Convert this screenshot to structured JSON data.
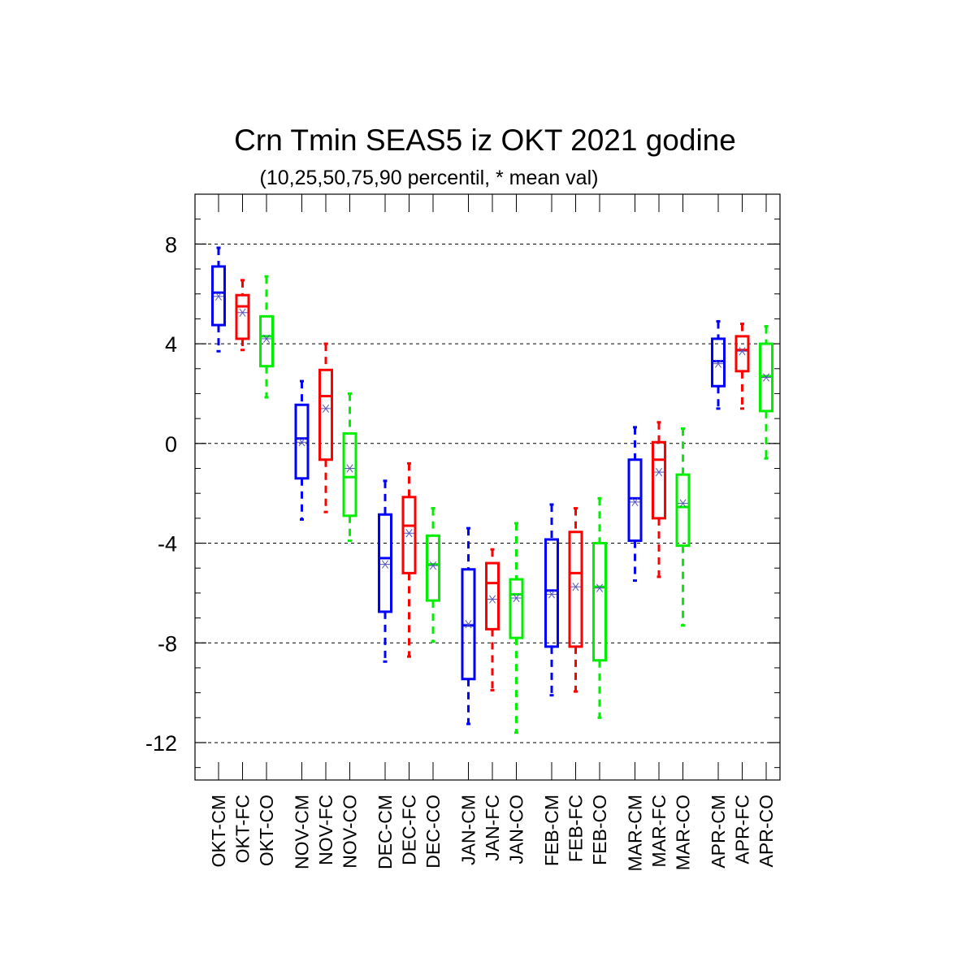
{
  "chart_data": {
    "type": "box",
    "title": "Crn Tmin SEAS5 iz OKT 2021 godine",
    "subtitle": "(10,25,50,75,90 percentil, * mean val)",
    "ylim": [
      -13.5,
      10
    ],
    "yticks": [
      8,
      4,
      0,
      -4,
      -8,
      -12
    ],
    "ytick_labels": [
      "8",
      "4",
      "0",
      "-4",
      "-8",
      "-12"
    ],
    "grid": "horizontal dashed at major ticks",
    "series_colors": {
      "CM": "#0000ff",
      "FC": "#ff0000",
      "CO": "#00ee00"
    },
    "mean_marker_color": "#5555bb",
    "groups": [
      "OKT",
      "NOV",
      "DEC",
      "JAN",
      "FEB",
      "MAR",
      "APR"
    ],
    "boxes": [
      {
        "label": "OKT-CM",
        "series": "CM",
        "p10": 3.7,
        "p25": 4.75,
        "p50": 6.05,
        "p75": 7.1,
        "p90": 7.85,
        "mean": 5.9
      },
      {
        "label": "OKT-FC",
        "series": "FC",
        "p10": 3.75,
        "p25": 4.2,
        "p50": 5.5,
        "p75": 5.95,
        "p90": 6.55,
        "mean": 5.25
      },
      {
        "label": "OKT-CO",
        "series": "CO",
        "p10": 1.85,
        "p25": 3.1,
        "p50": 4.3,
        "p75": 5.1,
        "p90": 6.7,
        "mean": 4.2
      },
      {
        "label": "NOV-CM",
        "series": "CM",
        "p10": -3.05,
        "p25": -1.4,
        "p50": 0.2,
        "p75": 1.55,
        "p90": 2.5,
        "mean": 0.05
      },
      {
        "label": "NOV-FC",
        "series": "FC",
        "p10": -2.75,
        "p25": -0.65,
        "p50": 1.9,
        "p75": 2.95,
        "p90": 4.0,
        "mean": 1.4
      },
      {
        "label": "NOV-CO",
        "series": "CO",
        "p10": -3.9,
        "p25": -2.9,
        "p50": -1.35,
        "p75": 0.4,
        "p90": 2.0,
        "mean": -1.0
      },
      {
        "label": "DEC-CM",
        "series": "CM",
        "p10": -8.75,
        "p25": -6.75,
        "p50": -4.6,
        "p75": -2.85,
        "p90": -1.5,
        "mean": -4.85
      },
      {
        "label": "DEC-FC",
        "series": "FC",
        "p10": -8.55,
        "p25": -5.2,
        "p50": -3.3,
        "p75": -2.15,
        "p90": -0.8,
        "mean": -3.6
      },
      {
        "label": "DEC-CO",
        "series": "CO",
        "p10": -7.95,
        "p25": -6.3,
        "p50": -4.85,
        "p75": -3.7,
        "p90": -2.6,
        "mean": -4.9
      },
      {
        "label": "JAN-CM",
        "series": "CM",
        "p10": -11.25,
        "p25": -9.45,
        "p50": -7.3,
        "p75": -5.05,
        "p90": -3.4,
        "mean": -7.25
      },
      {
        "label": "JAN-FC",
        "series": "FC",
        "p10": -9.9,
        "p25": -7.45,
        "p50": -5.6,
        "p75": -4.8,
        "p90": -4.25,
        "mean": -6.25
      },
      {
        "label": "JAN-CO",
        "series": "CO",
        "p10": -11.6,
        "p25": -7.8,
        "p50": -6.05,
        "p75": -5.45,
        "p90": -3.2,
        "mean": -6.2
      },
      {
        "label": "FEB-CM",
        "series": "CM",
        "p10": -10.1,
        "p25": -8.15,
        "p50": -5.9,
        "p75": -3.85,
        "p90": -2.45,
        "mean": -6.05
      },
      {
        "label": "FEB-FC",
        "series": "FC",
        "p10": -9.95,
        "p25": -8.15,
        "p50": -5.2,
        "p75": -3.55,
        "p90": -2.6,
        "mean": -5.75
      },
      {
        "label": "FEB-CO",
        "series": "CO",
        "p10": -11.0,
        "p25": -8.7,
        "p50": -5.75,
        "p75": -4.0,
        "p90": -2.2,
        "mean": -5.8
      },
      {
        "label": "MAR-CM",
        "series": "CM",
        "p10": -5.5,
        "p25": -3.9,
        "p50": -2.2,
        "p75": -0.65,
        "p90": 0.65,
        "mean": -2.35
      },
      {
        "label": "MAR-FC",
        "series": "FC",
        "p10": -5.35,
        "p25": -3.0,
        "p50": -0.65,
        "p75": 0.05,
        "p90": 0.85,
        "mean": -1.15
      },
      {
        "label": "MAR-CO",
        "series": "CO",
        "p10": -7.3,
        "p25": -4.1,
        "p50": -2.55,
        "p75": -1.25,
        "p90": 0.6,
        "mean": -2.4
      },
      {
        "label": "APR-CM",
        "series": "CM",
        "p10": 1.4,
        "p25": 2.3,
        "p50": 3.3,
        "p75": 4.2,
        "p90": 4.9,
        "mean": 3.2
      },
      {
        "label": "APR-FC",
        "series": "FC",
        "p10": 1.4,
        "p25": 2.9,
        "p50": 3.75,
        "p75": 4.3,
        "p90": 4.8,
        "mean": 3.7
      },
      {
        "label": "APR-CO",
        "series": "CO",
        "p10": -0.6,
        "p25": 1.3,
        "p50": 2.7,
        "p75": 4.0,
        "p90": 4.7,
        "mean": 2.65
      }
    ]
  }
}
